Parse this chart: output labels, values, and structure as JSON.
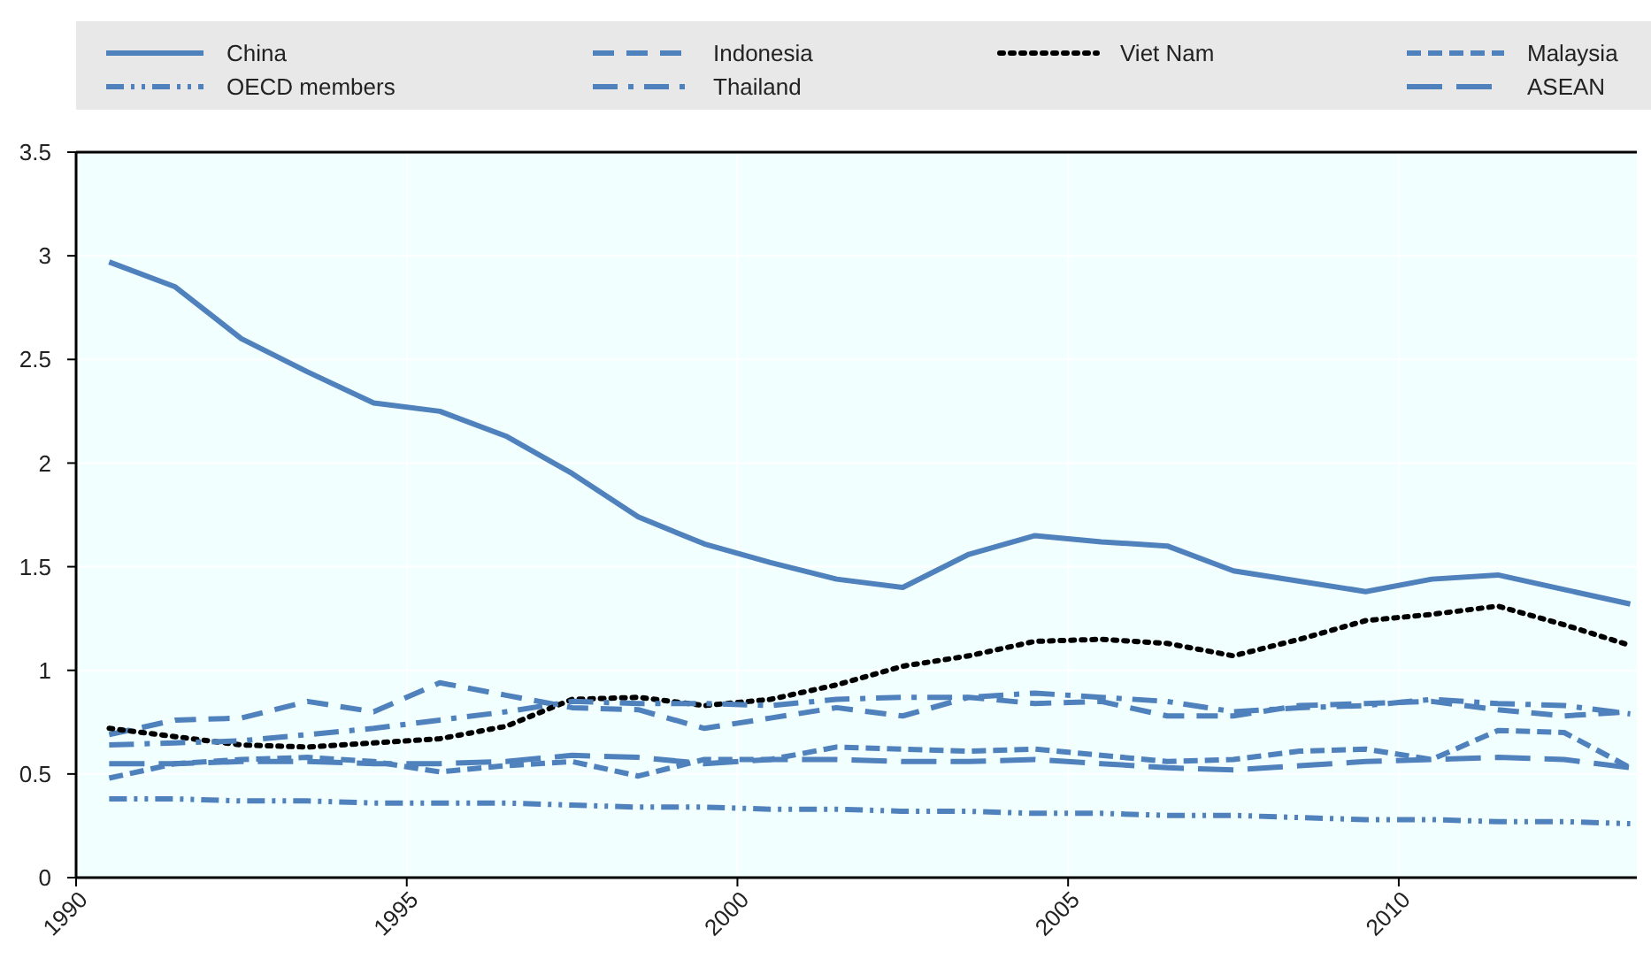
{
  "chart_data": {
    "type": "line",
    "x": [
      1990.5,
      1991.5,
      1992.5,
      1993.5,
      1994.5,
      1995.5,
      1996.5,
      1997.5,
      1998.5,
      1999.5,
      2000.5,
      2001.5,
      2002.5,
      2003.5,
      2004.5,
      2005.5,
      2006.5,
      2007.5,
      2008.5,
      2009.5,
      2010.5,
      2011.5,
      2012.5,
      2013.5
    ],
    "xlim": [
      1990,
      2013.6
    ],
    "xticks": [
      1990,
      1995,
      2000,
      2005,
      2010
    ],
    "ylim": [
      0,
      3.5
    ],
    "yticks": [
      0,
      0.5,
      1,
      1.5,
      2,
      2.5,
      3,
      3.5
    ],
    "grid": true,
    "legend": "top",
    "series": [
      {
        "name": "China",
        "color": "#4f81bd",
        "line_style": "solid",
        "values": [
          2.97,
          2.85,
          2.6,
          2.44,
          2.29,
          2.25,
          2.13,
          1.95,
          1.74,
          1.61,
          1.52,
          1.44,
          1.4,
          1.56,
          1.65,
          1.62,
          1.6,
          1.48,
          1.43,
          1.38,
          1.44,
          1.46,
          1.39,
          1.32
        ]
      },
      {
        "name": "Indonesia",
        "color": "#4f81bd",
        "line_style": "dashed",
        "values": [
          0.69,
          0.76,
          0.77,
          0.85,
          0.8,
          0.94,
          0.88,
          0.82,
          0.81,
          0.72,
          0.77,
          0.82,
          0.78,
          0.87,
          0.84,
          0.85,
          0.78,
          0.78,
          0.83,
          0.84,
          0.85,
          0.81,
          0.78,
          0.8
        ]
      },
      {
        "name": "Viet Nam",
        "color": "#000000",
        "line_style": "dotted",
        "values": [
          0.72,
          0.68,
          0.64,
          0.63,
          0.65,
          0.67,
          0.73,
          0.86,
          0.87,
          0.83,
          0.86,
          0.93,
          1.02,
          1.07,
          1.14,
          1.15,
          1.13,
          1.07,
          1.15,
          1.24,
          1.27,
          1.31,
          1.22,
          1.12
        ]
      },
      {
        "name": "Malaysia",
        "color": "#4f81bd",
        "line_style": "shortdash",
        "values": [
          0.48,
          0.55,
          0.57,
          0.58,
          0.56,
          0.51,
          0.54,
          0.56,
          0.49,
          0.57,
          0.57,
          0.63,
          0.62,
          0.61,
          0.62,
          0.59,
          0.56,
          0.57,
          0.61,
          0.62,
          0.57,
          0.71,
          0.7,
          0.53
        ]
      },
      {
        "name": "OECD members",
        "color": "#4f81bd",
        "line_style": "dashdotdot",
        "values": [
          0.38,
          0.38,
          0.37,
          0.37,
          0.36,
          0.36,
          0.36,
          0.35,
          0.34,
          0.34,
          0.33,
          0.33,
          0.32,
          0.32,
          0.31,
          0.31,
          0.3,
          0.3,
          0.29,
          0.28,
          0.28,
          0.27,
          0.27,
          0.26
        ]
      },
      {
        "name": "Thailand",
        "color": "#4f81bd",
        "line_style": "dashdot",
        "values": [
          0.64,
          0.65,
          0.66,
          0.69,
          0.72,
          0.76,
          0.8,
          0.85,
          0.84,
          0.84,
          0.83,
          0.86,
          0.87,
          0.87,
          0.89,
          0.87,
          0.85,
          0.8,
          0.82,
          0.83,
          0.86,
          0.84,
          0.83,
          0.79
        ]
      },
      {
        "name": "ASEAN",
        "color": "#4f81bd",
        "line_style": "longdash",
        "values": [
          0.55,
          0.55,
          0.56,
          0.56,
          0.55,
          0.55,
          0.56,
          0.59,
          0.58,
          0.55,
          0.57,
          0.57,
          0.56,
          0.56,
          0.57,
          0.55,
          0.53,
          0.52,
          0.54,
          0.56,
          0.57,
          0.58,
          0.57,
          0.53
        ]
      }
    ]
  }
}
